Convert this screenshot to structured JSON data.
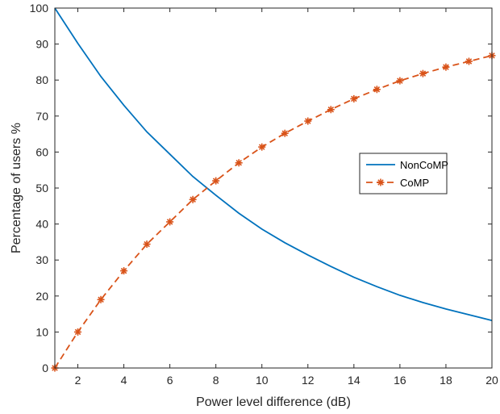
{
  "chart_data": {
    "type": "line",
    "title": "",
    "xlabel": "Power level difference (dB)",
    "ylabel": "Percentage of users %",
    "xlim": [
      1,
      20
    ],
    "ylim": [
      0,
      100
    ],
    "xticks": [
      2,
      4,
      6,
      8,
      10,
      12,
      14,
      16,
      18,
      20
    ],
    "yticks": [
      0,
      10,
      20,
      30,
      40,
      50,
      60,
      70,
      80,
      90,
      100
    ],
    "grid": false,
    "legend_position": "right",
    "x": [
      1,
      2,
      3,
      4,
      5,
      6,
      7,
      8,
      9,
      10,
      11,
      12,
      13,
      14,
      15,
      16,
      17,
      18,
      19,
      20
    ],
    "series": [
      {
        "name": "NonCoMP",
        "color": "#0072BD",
        "style": "solid",
        "marker": "none",
        "values": [
          100,
          90.2,
          81.0,
          73.0,
          65.6,
          59.4,
          53.2,
          48.0,
          43.0,
          38.6,
          34.8,
          31.4,
          28.2,
          25.2,
          22.6,
          20.2,
          18.2,
          16.4,
          14.8,
          13.2
        ]
      },
      {
        "name": "CoMP",
        "color": "#D95319",
        "style": "dashed",
        "marker": "asterisk",
        "values": [
          0,
          10.0,
          19.0,
          27.0,
          34.4,
          40.6,
          46.8,
          52.0,
          57.0,
          61.4,
          65.2,
          68.6,
          71.8,
          74.8,
          77.4,
          79.8,
          81.8,
          83.6,
          85.2,
          86.8
        ]
      }
    ]
  }
}
